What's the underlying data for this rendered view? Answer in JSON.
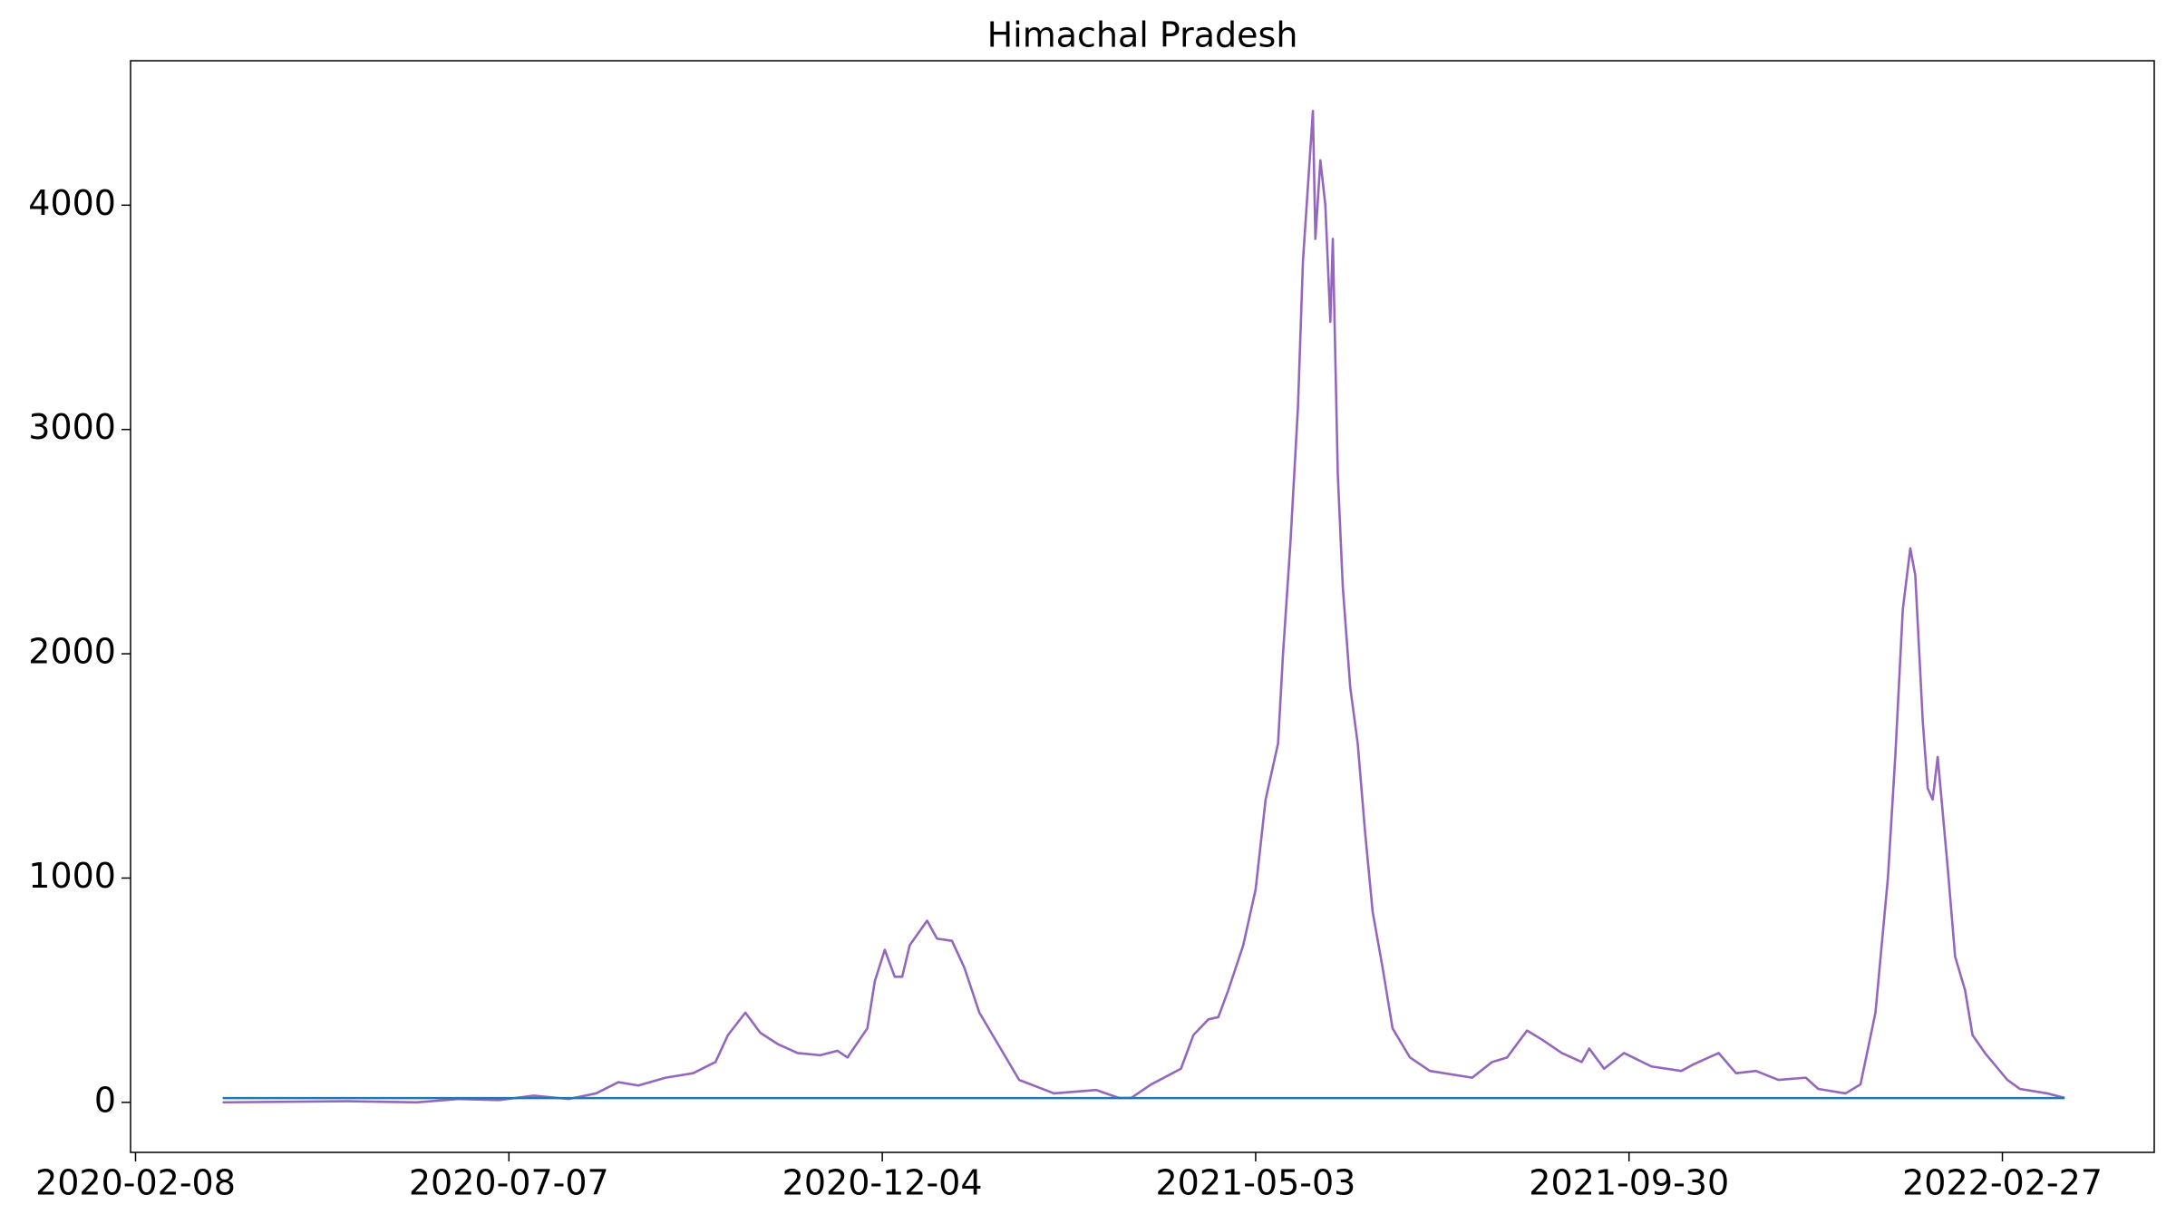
{
  "chart_data": {
    "type": "line",
    "title": "Himachal Pradesh",
    "xlim": [
      "2020-02-06",
      "2022-04-29"
    ],
    "xticks": [
      "2020-02-08",
      "2020-07-07",
      "2020-12-04",
      "2021-05-03",
      "2021-09-30",
      "2022-02-27"
    ],
    "ylim": [
      -223,
      4644
    ],
    "yticks": [
      0,
      1000,
      2000,
      3000,
      4000
    ],
    "grid": false,
    "series": [
      {
        "color": "#9467bd",
        "x": [
          "2020-03-14",
          "2020-05-03",
          "2020-05-31",
          "2020-06-17",
          "2020-07-03",
          "2020-07-17",
          "2020-07-31",
          "2020-08-11",
          "2020-08-20",
          "2020-08-28",
          "2020-09-08",
          "2020-09-19",
          "2020-09-28",
          "2020-10-03",
          "2020-10-10",
          "2020-10-16",
          "2020-10-23",
          "2020-10-31",
          "2020-11-09",
          "2020-11-16",
          "2020-11-20",
          "2020-11-28",
          "2020-12-01",
          "2020-12-05",
          "2020-12-09",
          "2020-12-12",
          "2020-12-15",
          "2020-12-22",
          "2020-12-26",
          "2021-01-01",
          "2021-01-06",
          "2021-01-12",
          "2021-01-20",
          "2021-01-28",
          "2021-02-11",
          "2021-02-28",
          "2021-03-09",
          "2021-03-14",
          "2021-03-22",
          "2021-04-03",
          "2021-04-08",
          "2021-04-14",
          "2021-04-18",
          "2021-04-22",
          "2021-04-28",
          "2021-05-03",
          "2021-05-07",
          "2021-05-12",
          "2021-05-14",
          "2021-05-17",
          "2021-05-20",
          "2021-05-22",
          "2021-05-26",
          "2021-05-27",
          "2021-05-29",
          "2021-05-31",
          "2021-06-02",
          "2021-06-03",
          "2021-06-05",
          "2021-06-07",
          "2021-06-10",
          "2021-06-13",
          "2021-06-16",
          "2021-06-19",
          "2021-06-23",
          "2021-06-27",
          "2021-07-04",
          "2021-07-12",
          "2021-07-29",
          "2021-08-06",
          "2021-08-12",
          "2021-08-20",
          "2021-08-26",
          "2021-09-03",
          "2021-09-11",
          "2021-09-14",
          "2021-09-20",
          "2021-09-28",
          "2021-10-09",
          "2021-10-21",
          "2021-10-26",
          "2021-11-05",
          "2021-11-12",
          "2021-11-20",
          "2021-11-29",
          "2021-12-10",
          "2021-12-15",
          "2021-12-26",
          "2022-01-01",
          "2022-01-07",
          "2022-01-12",
          "2022-01-15",
          "2022-01-18",
          "2022-01-21",
          "2022-01-23",
          "2022-01-26",
          "2022-01-28",
          "2022-01-30",
          "2022-02-01",
          "2022-02-05",
          "2022-02-08",
          "2022-02-12",
          "2022-02-15",
          "2022-02-20",
          "2022-03-01",
          "2022-03-06",
          "2022-03-17",
          "2022-03-24"
        ],
        "values": [
          0,
          5,
          0,
          15,
          10,
          30,
          15,
          40,
          90,
          75,
          110,
          130,
          180,
          300,
          400,
          310,
          260,
          220,
          210,
          230,
          200,
          330,
          540,
          680,
          560,
          560,
          700,
          810,
          730,
          720,
          600,
          400,
          250,
          100,
          40,
          55,
          20,
          20,
          80,
          150,
          300,
          370,
          380,
          500,
          700,
          950,
          1350,
          1600,
          2000,
          2500,
          3100,
          3750,
          4420,
          3850,
          4200,
          4000,
          3480,
          3850,
          2800,
          2300,
          1850,
          1600,
          1200,
          850,
          600,
          330,
          200,
          140,
          110,
          180,
          200,
          320,
          280,
          220,
          180,
          240,
          150,
          220,
          160,
          140,
          170,
          220,
          130,
          140,
          100,
          110,
          60,
          40,
          80,
          400,
          1000,
          1550,
          2200,
          2470,
          2350,
          1700,
          1400,
          1350,
          1540,
          1050,
          650,
          500,
          300,
          220,
          100,
          60,
          40,
          20
        ]
      },
      {
        "color": "#1f77b4",
        "x": [
          "2020-03-14",
          "2022-03-24"
        ],
        "values": [
          19,
          19
        ]
      }
    ]
  }
}
